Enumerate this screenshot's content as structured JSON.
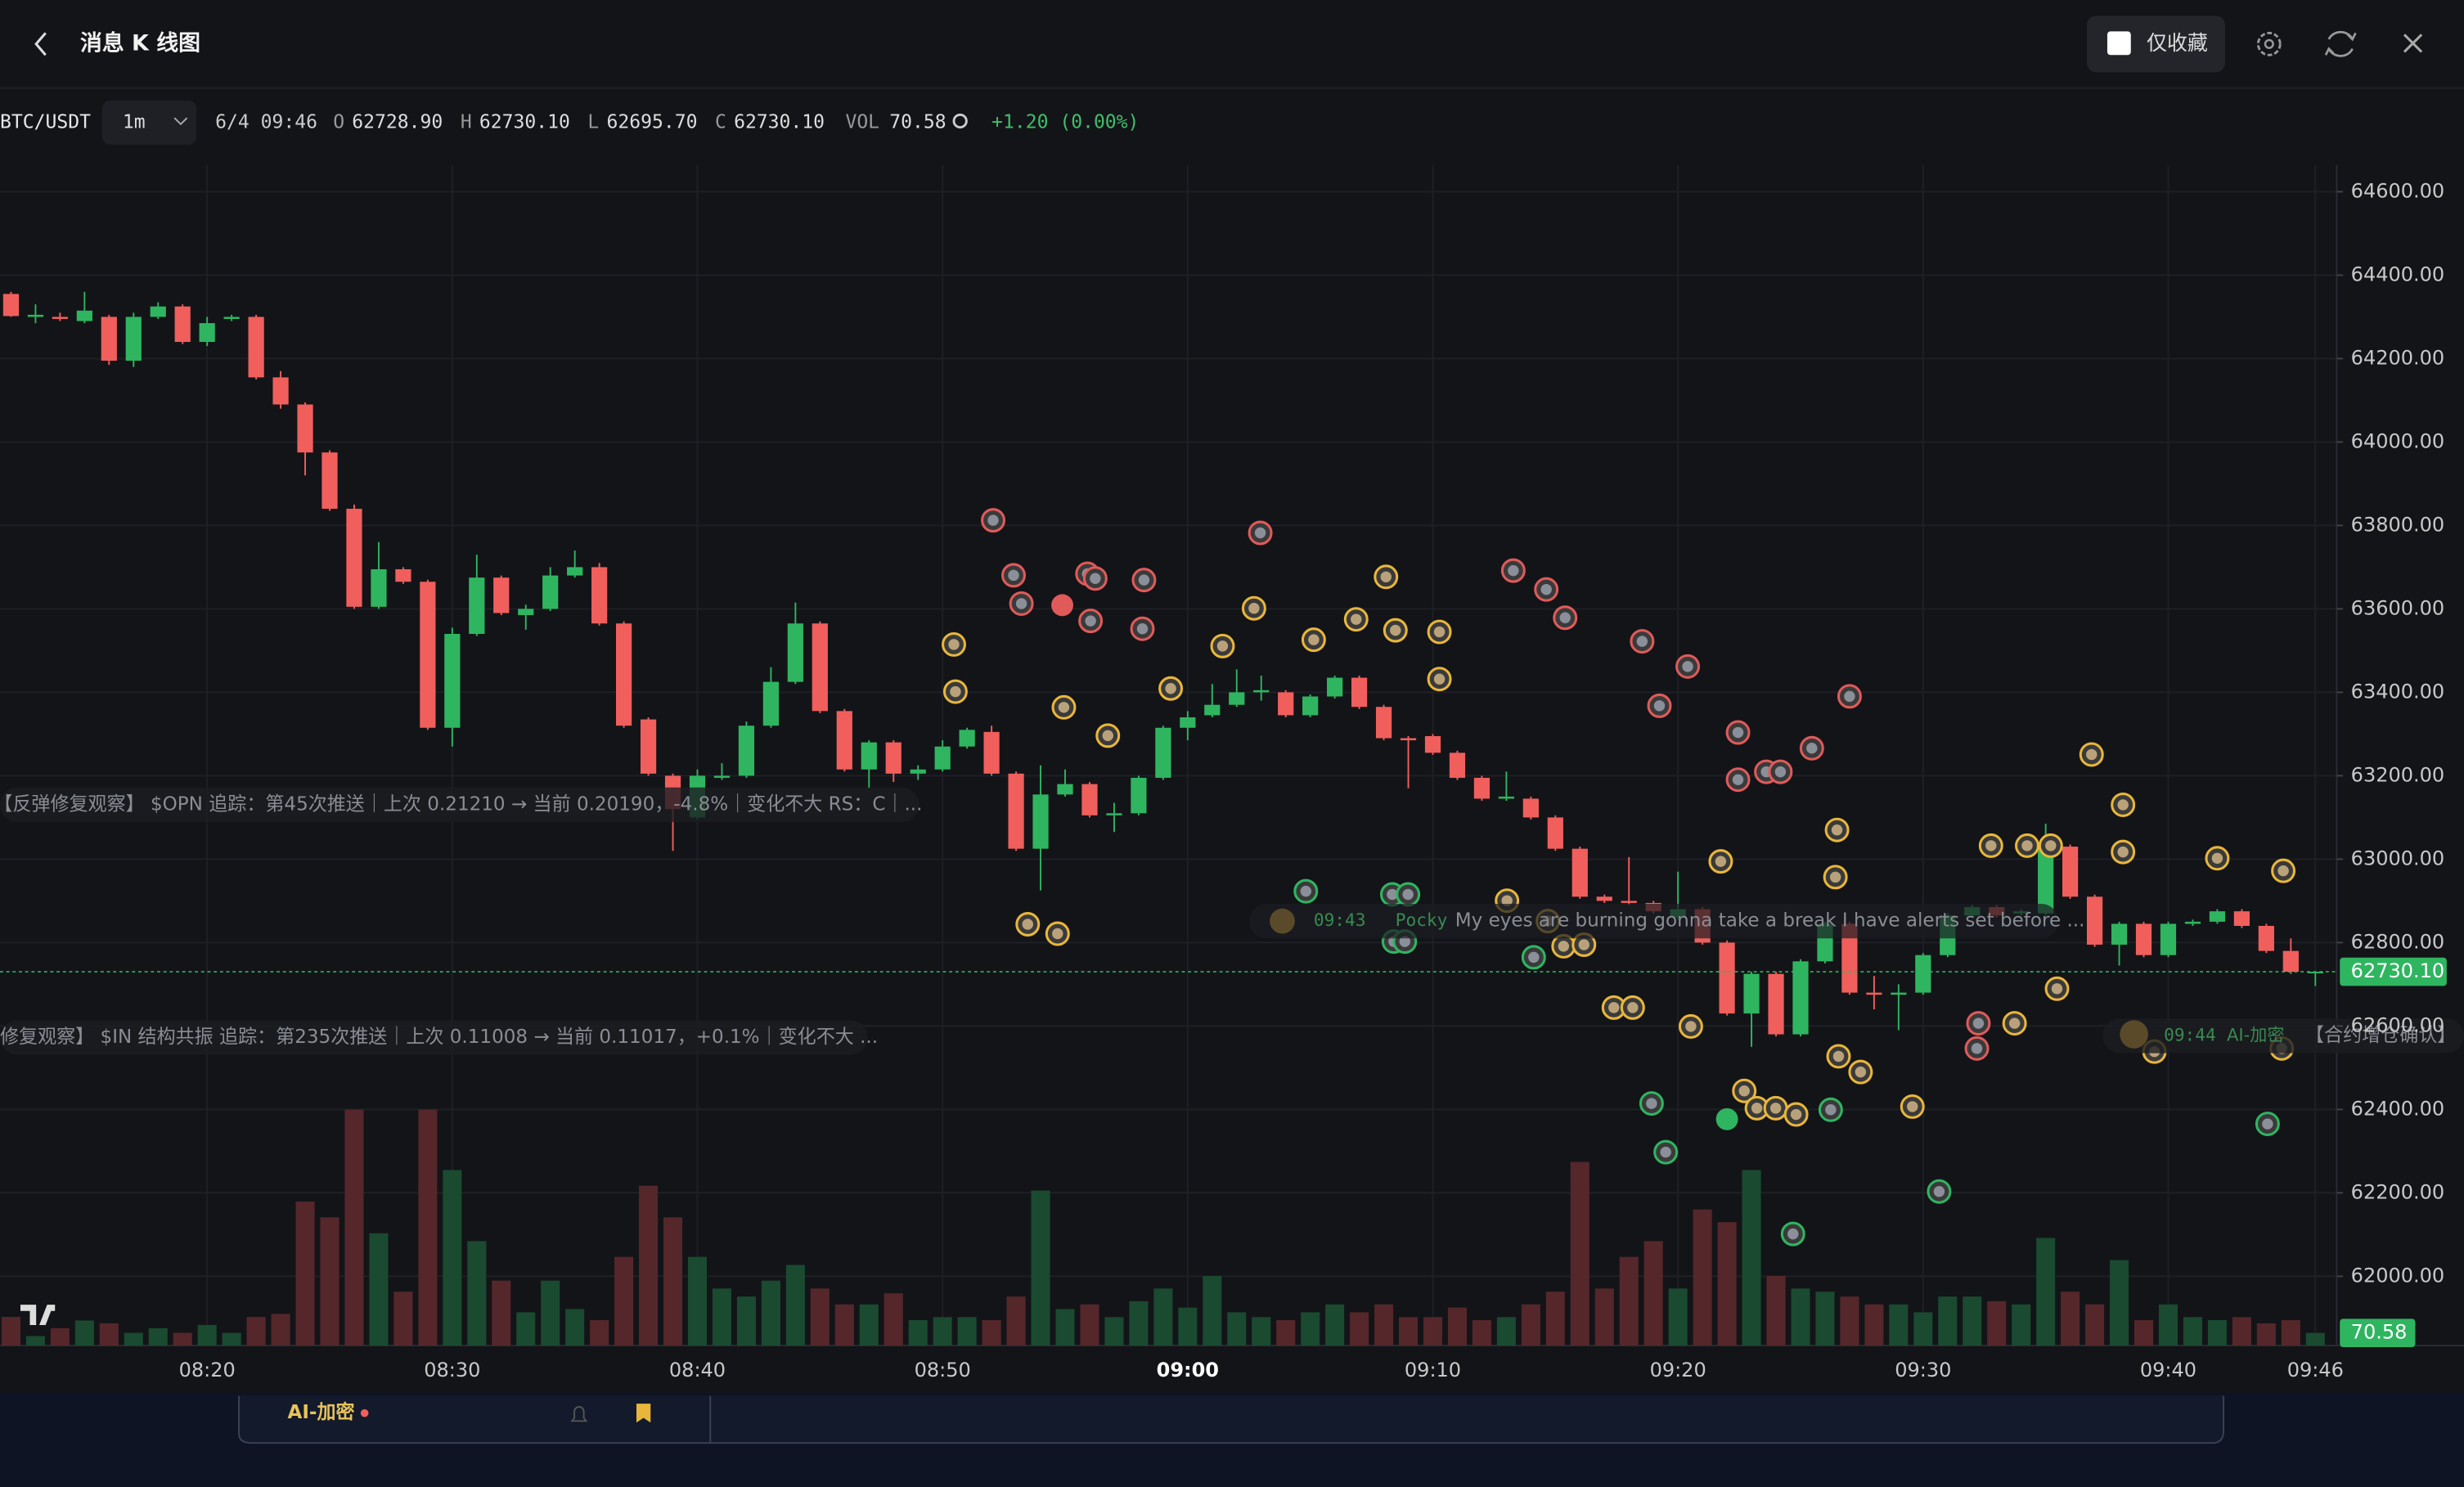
{
  "header": {
    "title": "消息 K 线图",
    "favorites_only": "仅收藏"
  },
  "toolbar": {
    "symbol": "BTC/USDT",
    "interval": "1m",
    "time": "6/4 09:46",
    "ohlc": [
      {
        "label": "O",
        "value": "62728.90"
      },
      {
        "label": "H",
        "value": "62730.10"
      },
      {
        "label": "L",
        "value": "62695.70"
      },
      {
        "label": "C",
        "value": "62730.10"
      }
    ],
    "vol_label": "VOL",
    "vol": "70.58",
    "change": "+1.20 (0.00%)"
  },
  "messages": [
    {
      "text": "【反弹修复观察】 $OPN 追踪：第45次推送｜上次 0.21210 → 当前 0.20190，-4.8%｜变化不大 RS：C｜..."
    },
    {
      "time": "09:43",
      "user": "Pocky",
      "text": "My eyes are burning gonna take a break I have alerts set before ..."
    },
    {
      "text": "修复观察】 $IN 结构共振 追踪：第235次推送｜上次 0.11008 → 当前 0.11017，+0.1%｜变化不大 ..."
    },
    {
      "time": "09:44",
      "user": "AI-加密",
      "text": "【合约增仓确认】"
    }
  ],
  "footer": {
    "tab": "AI-加密"
  },
  "chart_data": {
    "type": "candlestick",
    "up_color": "#2fb560",
    "down_color": "#f05f5c",
    "grid": true,
    "categories": [
      null,
      null,
      null,
      null,
      null,
      null,
      null,
      null,
      "08:20",
      null,
      null,
      null,
      null,
      null,
      null,
      null,
      null,
      null,
      "08:30",
      null,
      null,
      null,
      null,
      null,
      null,
      null,
      null,
      null,
      "08:40",
      null,
      null,
      null,
      null,
      null,
      null,
      null,
      null,
      null,
      "08:50",
      null,
      null,
      null,
      null,
      null,
      null,
      null,
      null,
      null,
      "09:00",
      null,
      null,
      null,
      null,
      null,
      null,
      null,
      null,
      null,
      "09:10",
      null,
      null,
      null,
      null,
      null,
      null,
      null,
      null,
      null,
      "09:20",
      null,
      null,
      null,
      null,
      null,
      null,
      null,
      null,
      null,
      "09:30",
      null,
      null,
      null,
      null,
      null,
      null,
      null,
      null,
      null,
      "09:40",
      null,
      null,
      null,
      null,
      null,
      "09:46"
    ],
    "open": [
      64355,
      64300,
      64300,
      64290,
      64300,
      64195,
      64300,
      64325,
      64240,
      64295,
      64300,
      64155,
      64090,
      63975,
      63840,
      63605,
      63695,
      63665,
      63315,
      63540,
      63675,
      63585,
      63600,
      63680,
      63700,
      63565,
      63335,
      63200,
      63100,
      63195,
      63200,
      63320,
      63425,
      63565,
      63355,
      63215,
      63280,
      63205,
      63215,
      63270,
      63305,
      63205,
      63025,
      63155,
      63180,
      63105,
      63110,
      63195,
      63315,
      63345,
      63370,
      63400,
      63400,
      63345,
      63390,
      63435,
      63365,
      63290,
      63295,
      63255,
      63195,
      63145,
      63145,
      63100,
      63025,
      62910,
      62900,
      62895,
      62860,
      62880,
      62800,
      62630,
      62725,
      62580,
      62755,
      62845,
      62680,
      62675,
      62680,
      62770,
      62865,
      62885,
      62870,
      62870,
      63030,
      62910,
      62795,
      62845,
      62770,
      62845,
      62850,
      62875,
      62840,
      62780,
      62728.9
    ],
    "high": [
      64360,
      64330,
      64310,
      64360,
      64305,
      64310,
      64335,
      64330,
      64300,
      64305,
      64305,
      64170,
      64095,
      63980,
      63850,
      63760,
      63700,
      63670,
      63555,
      63730,
      63680,
      63610,
      63700,
      63740,
      63710,
      63570,
      63340,
      63205,
      63215,
      63230,
      63330,
      63460,
      63615,
      63570,
      63360,
      63285,
      63285,
      63225,
      63285,
      63315,
      63320,
      63210,
      63225,
      63215,
      63185,
      63135,
      63200,
      63320,
      63355,
      63420,
      63455,
      63440,
      63405,
      63395,
      63440,
      63440,
      63370,
      63295,
      63300,
      63260,
      63200,
      63210,
      63150,
      63105,
      63030,
      62915,
      63005,
      62900,
      62970,
      62885,
      62805,
      62730,
      62730,
      62760,
      62850,
      62850,
      62720,
      62700,
      62775,
      62870,
      62890,
      62890,
      62880,
      63085,
      63035,
      62915,
      62850,
      62850,
      62850,
      62855,
      62880,
      62880,
      62845,
      62810,
      62730.1
    ],
    "low": [
      64300,
      64285,
      64290,
      64285,
      64185,
      64180,
      64295,
      64235,
      64230,
      64290,
      64150,
      64080,
      63920,
      63835,
      63600,
      63600,
      63660,
      63310,
      63270,
      63535,
      63585,
      63550,
      63595,
      63675,
      63560,
      63315,
      63200,
      63020,
      63095,
      63190,
      63195,
      63315,
      63420,
      63350,
      63210,
      63170,
      63185,
      63190,
      63210,
      63265,
      63200,
      63020,
      62925,
      63150,
      63100,
      63065,
      63105,
      63190,
      63285,
      63340,
      63365,
      63380,
      63340,
      63340,
      63385,
      63360,
      63285,
      63170,
      63250,
      63190,
      63140,
      63140,
      63095,
      63020,
      62905,
      62895,
      62890,
      62870,
      62855,
      62795,
      62625,
      62550,
      62575,
      62575,
      62750,
      62675,
      62640,
      62590,
      62675,
      62765,
      62860,
      62860,
      62865,
      62865,
      62905,
      62790,
      62745,
      62765,
      62765,
      62840,
      62845,
      62835,
      62775,
      62725,
      62695.7
    ],
    "close": [
      64302,
      64305,
      64295,
      64315,
      64195,
      64300,
      64325,
      64240,
      64285,
      64300,
      64155,
      64090,
      63975,
      63840,
      63605,
      63695,
      63665,
      63315,
      63540,
      63675,
      63590,
      63600,
      63680,
      63700,
      63565,
      63320,
      63205,
      63120,
      63200,
      63200,
      63320,
      63425,
      63565,
      63355,
      63215,
      63280,
      63205,
      63215,
      63270,
      63310,
      63205,
      63025,
      63155,
      63180,
      63105,
      63110,
      63195,
      63315,
      63340,
      63370,
      63400,
      63405,
      63345,
      63390,
      63435,
      63365,
      63290,
      63285,
      63255,
      63195,
      63145,
      63150,
      63100,
      63025,
      62910,
      62900,
      62895,
      62875,
      62880,
      62800,
      62630,
      62725,
      62580,
      62755,
      62845,
      62680,
      62675,
      62680,
      62770,
      62865,
      62885,
      62865,
      62875,
      63030,
      62910,
      62795,
      62845,
      62770,
      62845,
      62850,
      62875,
      62840,
      62780,
      62730,
      62730.1
    ],
    "volume": [
      160,
      53,
      97,
      140,
      124,
      71,
      97,
      71,
      115,
      71,
      160,
      177,
      805,
      717,
      1319,
      628,
      301,
      1319,
      982,
      584,
      363,
      186,
      363,
      204,
      142,
      496,
      894,
      717,
      496,
      319,
      274,
      363,
      451,
      319,
      230,
      230,
      292,
      142,
      159,
      159,
      142,
      274,
      867,
      204,
      230,
      159,
      248,
      319,
      212,
      389,
      186,
      159,
      142,
      186,
      230,
      186,
      230,
      159,
      159,
      212,
      142,
      159,
      230,
      301,
      1027,
      319,
      496,
      584,
      319,
      761,
      690,
      982,
      389,
      319,
      301,
      274,
      230,
      230,
      186,
      274,
      274,
      248,
      230,
      602,
      301,
      230,
      478,
      142,
      230,
      159,
      142,
      159,
      124,
      142,
      70.58
    ],
    "last_price": {
      "value": 62730.1,
      "label": "62730.10"
    },
    "ylim": [
      61834,
      64664
    ],
    "yticks": [
      {
        "value": 64600,
        "label": "64600.00"
      },
      {
        "value": 64400,
        "label": "64400.00"
      },
      {
        "value": 64200,
        "label": "64200.00"
      },
      {
        "value": 64000,
        "label": "64000.00"
      },
      {
        "value": 63800,
        "label": "63800.00"
      },
      {
        "value": 63600,
        "label": "63600.00"
      },
      {
        "value": 63400,
        "label": "63400.00"
      },
      {
        "value": 63200,
        "label": "63200.00"
      },
      {
        "value": 63000,
        "label": "63000.00"
      },
      {
        "value": 62800,
        "label": "62800.00"
      },
      {
        "value": 62600,
        "label": "62600.00"
      },
      {
        "value": 62400,
        "label": "62400.00"
      },
      {
        "value": 62200,
        "label": "62200.00"
      },
      {
        "value": 62000,
        "label": "62000.00"
      }
    ]
  }
}
